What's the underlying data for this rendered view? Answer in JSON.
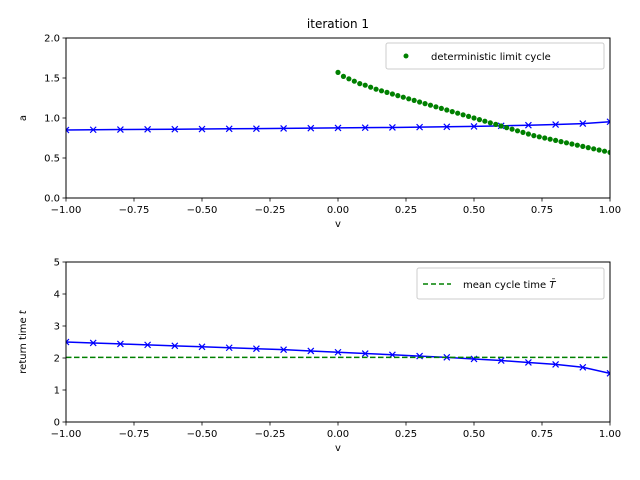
{
  "figure": {
    "title": "iteration 1"
  },
  "chart_data": [
    {
      "type": "line",
      "xlabel": "v",
      "ylabel": "a",
      "xlim": [
        -1.0,
        1.0
      ],
      "ylim": [
        0.0,
        2.0
      ],
      "xticks": [
        "−1.00",
        "−0.75",
        "−0.50",
        "−0.25",
        "0.00",
        "0.25",
        "0.50",
        "0.75",
        "1.00"
      ],
      "yticks": [
        "0.0",
        "0.5",
        "1.0",
        "1.5",
        "2.0"
      ],
      "xtick_values": [
        -1.0,
        -0.75,
        -0.5,
        -0.25,
        0.0,
        0.25,
        0.5,
        0.75,
        1.0
      ],
      "ytick_values": [
        0.0,
        0.5,
        1.0,
        1.5,
        2.0
      ],
      "legend_position": "top-right",
      "series": [
        {
          "style": "line-x-markers",
          "color": "#0000ff",
          "x": [
            -1.0,
            -0.9,
            -0.8,
            -0.7,
            -0.6,
            -0.5,
            -0.4,
            -0.3,
            -0.2,
            -0.1,
            0.0,
            0.1,
            0.2,
            0.3,
            0.4,
            0.5,
            0.6,
            0.7,
            0.8,
            0.9,
            1.0
          ],
          "y": [
            0.85,
            0.853,
            0.856,
            0.858,
            0.86,
            0.862,
            0.865,
            0.867,
            0.87,
            0.873,
            0.876,
            0.879,
            0.882,
            0.886,
            0.89,
            0.895,
            0.902,
            0.91,
            0.918,
            0.93,
            0.953
          ]
        },
        {
          "name": "deterministic limit cycle",
          "style": "dots",
          "color": "#008000",
          "x": [
            0.0,
            0.02,
            0.04,
            0.06,
            0.08,
            0.1,
            0.12,
            0.14,
            0.16,
            0.18,
            0.2,
            0.22,
            0.24,
            0.26,
            0.28,
            0.3,
            0.32,
            0.34,
            0.36,
            0.38,
            0.4,
            0.42,
            0.44,
            0.46,
            0.48,
            0.5,
            0.52,
            0.54,
            0.56,
            0.58,
            0.6,
            0.62,
            0.64,
            0.66,
            0.68,
            0.7,
            0.72,
            0.74,
            0.76,
            0.78,
            0.8,
            0.82,
            0.84,
            0.86,
            0.88,
            0.9,
            0.92,
            0.94,
            0.96,
            0.98,
            1.0
          ],
          "y": [
            1.57,
            1.52,
            1.49,
            1.46,
            1.43,
            1.41,
            1.385,
            1.36,
            1.34,
            1.32,
            1.3,
            1.28,
            1.26,
            1.24,
            1.22,
            1.2,
            1.18,
            1.16,
            1.14,
            1.12,
            1.1,
            1.08,
            1.06,
            1.04,
            1.02,
            1.0,
            0.98,
            0.96,
            0.94,
            0.92,
            0.9,
            0.88,
            0.86,
            0.84,
            0.82,
            0.8,
            0.78,
            0.765,
            0.75,
            0.735,
            0.72,
            0.705,
            0.69,
            0.675,
            0.66,
            0.645,
            0.63,
            0.615,
            0.6,
            0.585,
            0.57
          ]
        }
      ]
    },
    {
      "type": "line",
      "xlabel": "v",
      "ylabel": "return time t",
      "xlim": [
        -1.0,
        1.0
      ],
      "ylim": [
        0,
        5
      ],
      "xticks": [
        "−1.00",
        "−0.75",
        "−0.50",
        "−0.25",
        "0.00",
        "0.25",
        "0.50",
        "0.75",
        "1.00"
      ],
      "yticks": [
        "0",
        "1",
        "2",
        "3",
        "4",
        "5"
      ],
      "xtick_values": [
        -1.0,
        -0.75,
        -0.5,
        -0.25,
        0.0,
        0.25,
        0.5,
        0.75,
        1.0
      ],
      "ytick_values": [
        0,
        1,
        2,
        3,
        4,
        5
      ],
      "legend_position": "top-right",
      "series": [
        {
          "style": "line-x-markers",
          "color": "#0000ff",
          "x": [
            -1.0,
            -0.9,
            -0.8,
            -0.7,
            -0.6,
            -0.5,
            -0.4,
            -0.3,
            -0.2,
            -0.1,
            0.0,
            0.1,
            0.2,
            0.3,
            0.4,
            0.5,
            0.6,
            0.7,
            0.8,
            0.9,
            1.0
          ],
          "y": [
            2.5,
            2.47,
            2.44,
            2.41,
            2.38,
            2.35,
            2.32,
            2.29,
            2.26,
            2.22,
            2.18,
            2.14,
            2.1,
            2.06,
            2.02,
            1.97,
            1.92,
            1.86,
            1.8,
            1.71,
            1.52
          ]
        },
        {
          "name": "mean cycle time",
          "name_symbol": "T̄",
          "style": "dashed-hline",
          "color": "#008000",
          "y": 2.02
        }
      ]
    }
  ]
}
